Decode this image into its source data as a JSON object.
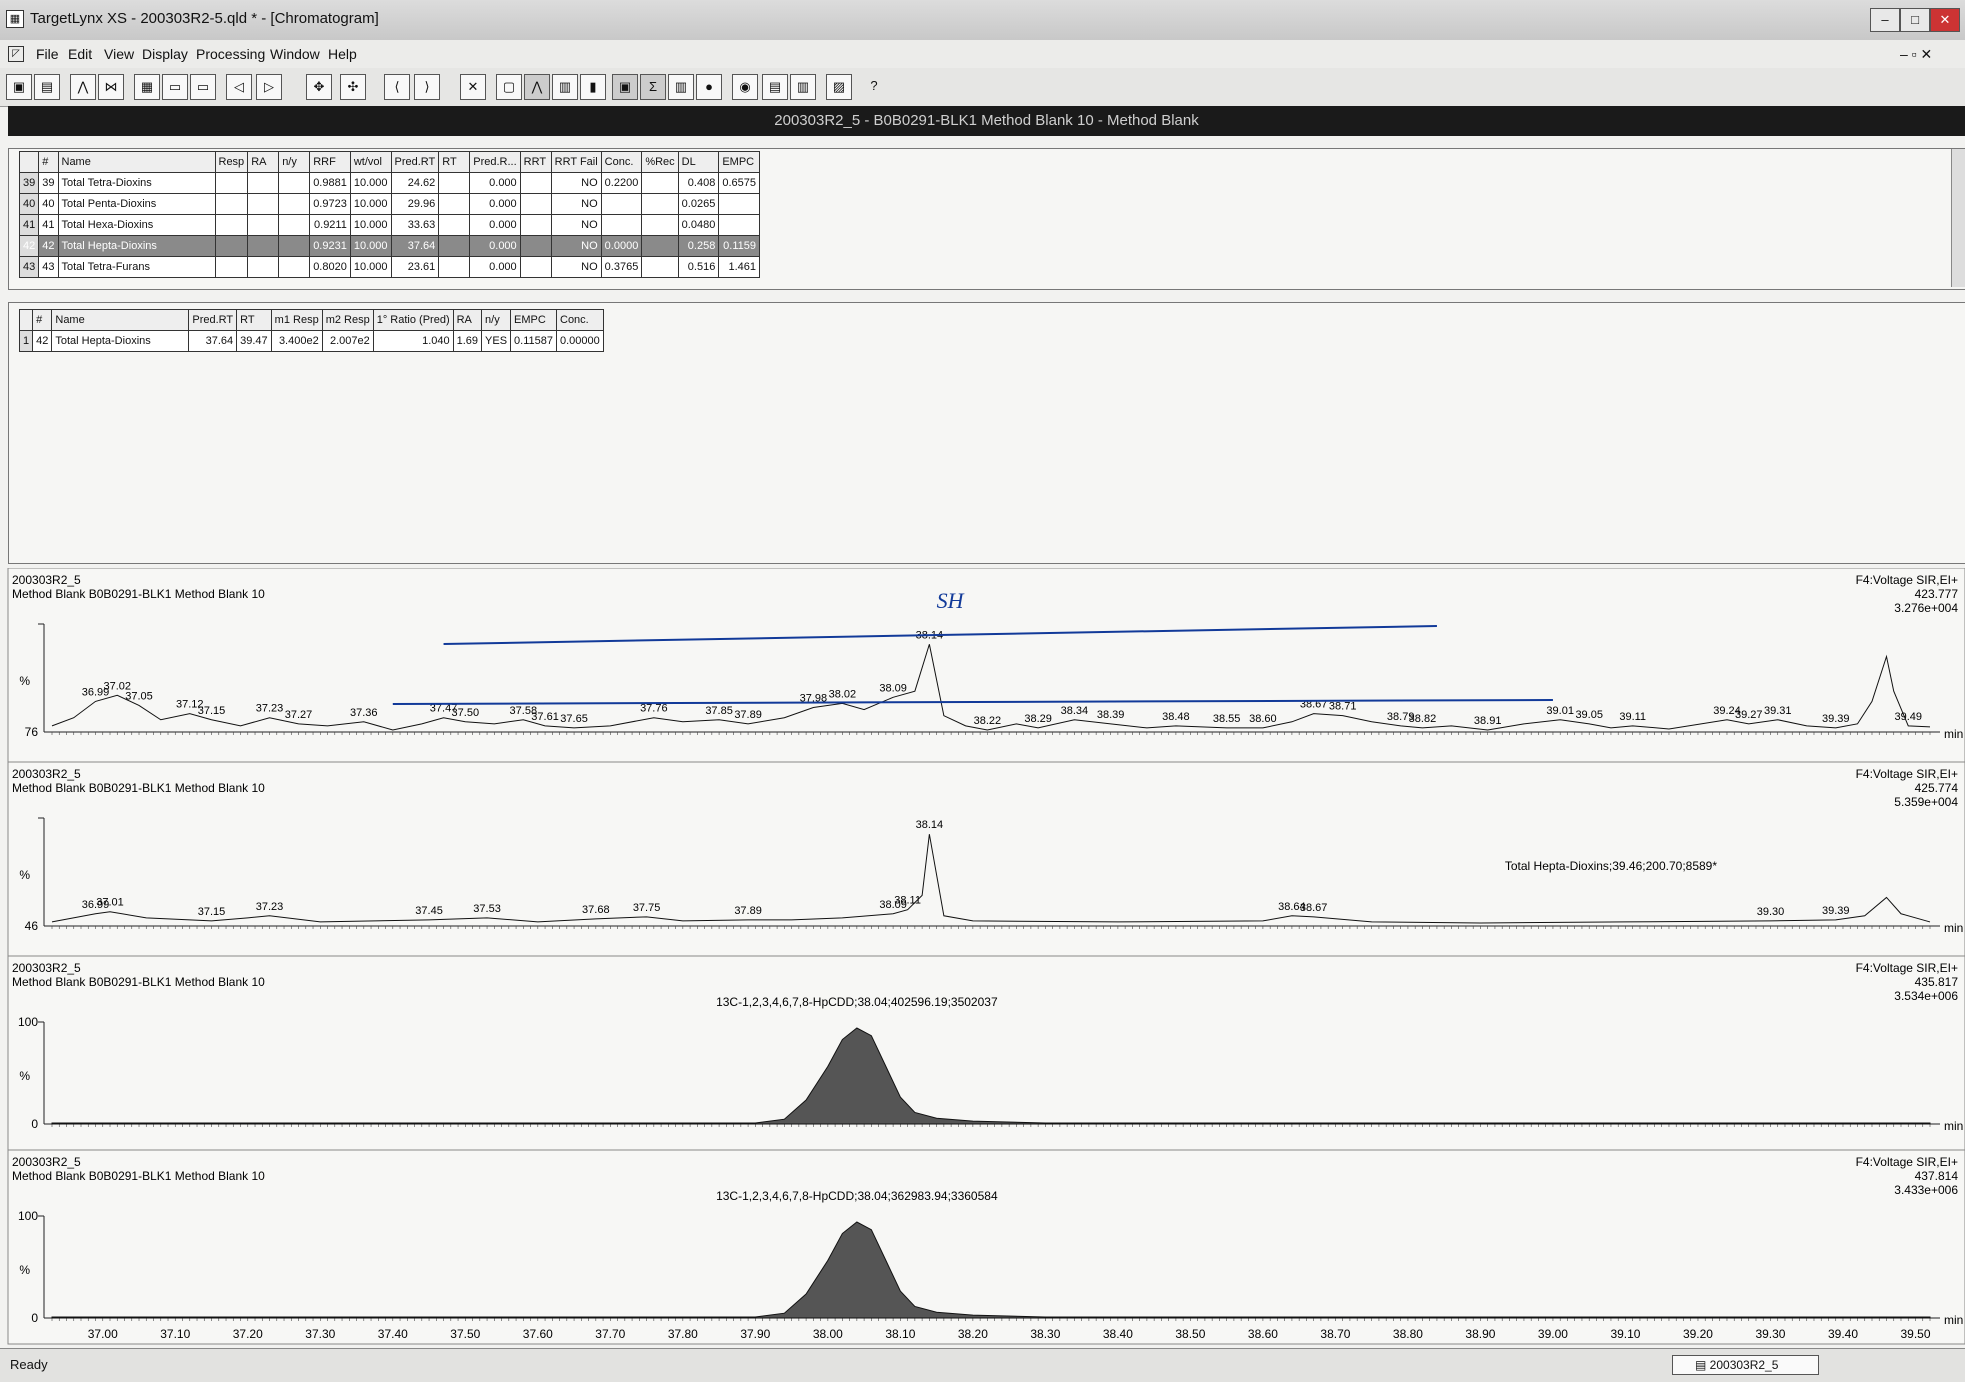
{
  "window": {
    "title": "TargetLynx XS - 200303R2-5.qld * - [Chromatogram]"
  },
  "menu": [
    "File",
    "Edit",
    "View",
    "Display",
    "Processing",
    "Window",
    "Help"
  ],
  "document_title": "200303R2_5 - B0B0291-BLK1 Method Blank 10 - Method Blank",
  "table1": {
    "headers": [
      "#",
      "Name",
      "Resp",
      "RA",
      "n/y",
      "RRF",
      "wt/vol",
      "Pred.RT",
      "RT",
      "Pred.R...",
      "RRT",
      "RRT Fail",
      "Conc.",
      "%Rec",
      "DL",
      "EMPC"
    ],
    "rows": [
      {
        "row": "39",
        "id": "39",
        "name": "Total Tetra-Dioxins",
        "rrf": "0.9881",
        "wtvol": "10.000",
        "predrt": "24.62",
        "predr": "0.000",
        "rrtfail": "NO",
        "conc": "0.2200",
        "dl": "0.408",
        "empc": "0.6575"
      },
      {
        "row": "40",
        "id": "40",
        "name": "Total Penta-Dioxins",
        "rrf": "0.9723",
        "wtvol": "10.000",
        "predrt": "29.96",
        "predr": "0.000",
        "rrtfail": "NO",
        "conc": "",
        "dl": "0.0265",
        "empc": ""
      },
      {
        "row": "41",
        "id": "41",
        "name": "Total Hexa-Dioxins",
        "rrf": "0.9211",
        "wtvol": "10.000",
        "predrt": "33.63",
        "predr": "0.000",
        "rrtfail": "NO",
        "conc": "",
        "dl": "0.0480",
        "empc": ""
      },
      {
        "row": "42",
        "id": "42",
        "name": "Total Hepta-Dioxins",
        "rrf": "0.9231",
        "wtvol": "10.000",
        "predrt": "37.64",
        "predr": "0.000",
        "rrtfail": "NO",
        "conc": "0.0000",
        "dl": "0.258",
        "empc": "0.1159"
      },
      {
        "row": "43",
        "id": "43",
        "name": "Total Tetra-Furans",
        "rrf": "0.8020",
        "wtvol": "10.000",
        "predrt": "23.61",
        "predr": "0.000",
        "rrtfail": "NO",
        "conc": "0.3765",
        "dl": "0.516",
        "empc": "1.461"
      }
    ]
  },
  "table2": {
    "headers": [
      "#",
      "Name",
      "Pred.RT",
      "RT",
      "m1 Resp",
      "m2 Resp",
      "1° Ratio (Pred)",
      "RA",
      "n/y",
      "EMPC",
      "Conc."
    ],
    "rows": [
      {
        "row": "1",
        "id": "42",
        "name": "Total Hepta-Dioxins",
        "predrt": "37.64",
        "rt": "39.47",
        "m1": "3.400e2",
        "m2": "2.007e2",
        "ratio": "1.040",
        "ra": "1.69",
        "ny": "YES",
        "empc": "0.11587",
        "conc": "0.00000"
      }
    ]
  },
  "axis": {
    "unit": "min",
    "ticks": [
      "37.00",
      "37.10",
      "37.20",
      "37.30",
      "37.40",
      "37.50",
      "37.60",
      "37.70",
      "37.80",
      "37.90",
      "38.00",
      "38.10",
      "38.20",
      "38.30",
      "38.40",
      "38.50",
      "38.60",
      "38.70",
      "38.80",
      "38.90",
      "39.00",
      "39.10",
      "39.20",
      "39.30",
      "39.40",
      "39.50"
    ]
  },
  "chart_data": [
    {
      "type": "line",
      "sample": "200303R2_5",
      "description": "Method Blank B0B0291-BLK1 Method Blank 10",
      "function": "F4:Voltage SIR,EI+",
      "mass": "423.777",
      "intensity": "3.276e+004",
      "ylabel": "%",
      "ymin_label": "76",
      "xlim": [
        36.93,
        39.52
      ],
      "annotation": "SH",
      "x": [
        36.93,
        36.96,
        36.99,
        37.02,
        37.05,
        37.08,
        37.12,
        37.15,
        37.19,
        37.23,
        37.27,
        37.31,
        37.36,
        37.4,
        37.44,
        37.47,
        37.5,
        37.54,
        37.58,
        37.61,
        37.65,
        37.7,
        37.76,
        37.8,
        37.85,
        37.89,
        37.94,
        37.98,
        38.02,
        38.05,
        38.09,
        38.12,
        38.14,
        38.16,
        38.19,
        38.22,
        38.26,
        38.29,
        38.34,
        38.39,
        38.44,
        38.48,
        38.55,
        38.6,
        38.64,
        38.67,
        38.71,
        38.75,
        38.79,
        38.82,
        38.86,
        38.91,
        38.96,
        39.01,
        39.05,
        39.08,
        39.11,
        39.16,
        39.24,
        39.27,
        39.31,
        39.35,
        39.39,
        39.42,
        39.44,
        39.46,
        39.47,
        39.49,
        39.52
      ],
      "y": [
        6,
        14,
        30,
        36,
        26,
        12,
        18,
        12,
        6,
        14,
        8,
        6,
        10,
        2,
        8,
        14,
        10,
        8,
        12,
        6,
        4,
        6,
        14,
        10,
        12,
        8,
        14,
        24,
        28,
        22,
        34,
        40,
        86,
        16,
        6,
        2,
        8,
        4,
        12,
        8,
        4,
        6,
        4,
        4,
        10,
        18,
        16,
        10,
        6,
        4,
        6,
        2,
        8,
        12,
        8,
        4,
        6,
        3,
        12,
        8,
        12,
        6,
        4,
        8,
        30,
        74,
        40,
        6,
        5
      ],
      "peak_labels": [
        [
          36.99,
          "36.99"
        ],
        [
          37.02,
          "37.02"
        ],
        [
          37.05,
          "37.05"
        ],
        [
          37.12,
          "37.12"
        ],
        [
          37.15,
          "37.15"
        ],
        [
          37.23,
          "37.23"
        ],
        [
          37.27,
          "37.27"
        ],
        [
          37.36,
          "37.36"
        ],
        [
          37.47,
          "37.47"
        ],
        [
          37.5,
          "37.50"
        ],
        [
          37.58,
          "37.58"
        ],
        [
          37.61,
          "37.61"
        ],
        [
          37.65,
          "37.65"
        ],
        [
          37.76,
          "37.76"
        ],
        [
          37.85,
          "37.85"
        ],
        [
          37.89,
          "37.89"
        ],
        [
          37.98,
          "37.98"
        ],
        [
          38.02,
          "38.02"
        ],
        [
          38.09,
          "38.09"
        ],
        [
          38.14,
          "38.14"
        ],
        [
          38.22,
          "38.22"
        ],
        [
          38.29,
          "38.29"
        ],
        [
          38.34,
          "38.34"
        ],
        [
          38.39,
          "38.39"
        ],
        [
          38.48,
          "38.48"
        ],
        [
          38.55,
          "38.55"
        ],
        [
          38.6,
          "38.60"
        ],
        [
          38.67,
          "38.67"
        ],
        [
          38.71,
          "38.71"
        ],
        [
          38.79,
          "38.79"
        ],
        [
          38.82,
          "38.82"
        ],
        [
          38.91,
          "38.91"
        ],
        [
          39.01,
          "39.01"
        ],
        [
          39.05,
          "39.05"
        ],
        [
          39.11,
          "39.11"
        ],
        [
          39.24,
          "39.24"
        ],
        [
          39.27,
          "39.27"
        ],
        [
          39.31,
          "39.31"
        ],
        [
          39.39,
          "39.39"
        ],
        [
          39.49,
          "39.49"
        ]
      ]
    },
    {
      "type": "line",
      "sample": "200303R2_5",
      "description": "Method Blank B0B0291-BLK1 Method Blank 10",
      "function": "F4:Voltage SIR,EI+",
      "mass": "425.774",
      "intensity": "5.359e+004",
      "ylabel": "%",
      "ymin_label": "46",
      "xlim": [
        36.93,
        39.52
      ],
      "annotation": "Total Hepta-Dioxins;39.46;200.70;8589*",
      "x": [
        36.93,
        36.99,
        37.01,
        37.06,
        37.15,
        37.2,
        37.23,
        37.3,
        37.45,
        37.53,
        37.6,
        37.68,
        37.75,
        37.8,
        37.89,
        37.95,
        38.02,
        38.09,
        38.11,
        38.13,
        38.14,
        38.16,
        38.2,
        38.4,
        38.6,
        38.64,
        38.67,
        38.75,
        38.9,
        39.1,
        39.3,
        39.39,
        39.43,
        39.46,
        39.48,
        39.52
      ],
      "y": [
        4,
        12,
        14,
        8,
        5,
        8,
        10,
        4,
        6,
        8,
        4,
        7,
        9,
        5,
        6,
        6,
        8,
        12,
        16,
        30,
        90,
        10,
        5,
        4,
        5,
        10,
        9,
        4,
        3,
        4,
        5,
        6,
        10,
        28,
        12,
        4
      ],
      "peak_labels": [
        [
          36.99,
          "36.99"
        ],
        [
          37.01,
          "37.01"
        ],
        [
          37.15,
          "37.15"
        ],
        [
          37.23,
          "37.23"
        ],
        [
          37.45,
          "37.45"
        ],
        [
          37.53,
          "37.53"
        ],
        [
          37.68,
          "37.68"
        ],
        [
          37.75,
          "37.75"
        ],
        [
          37.89,
          "37.89"
        ],
        [
          38.09,
          "38.09"
        ],
        [
          38.11,
          "38.11"
        ],
        [
          38.14,
          "38.14"
        ],
        [
          38.64,
          "38.64"
        ],
        [
          38.67,
          "38.67"
        ],
        [
          39.3,
          "39.30"
        ],
        [
          39.39,
          "39.39"
        ]
      ]
    },
    {
      "type": "area",
      "sample": "200303R2_5",
      "description": "Method Blank B0B0291-BLK1 Method Blank 10",
      "function": "F4:Voltage SIR,EI+",
      "mass": "435.817",
      "intensity": "3.534e+006",
      "ylabel": "%",
      "ytick_top": "100",
      "ymin_label": "0",
      "xlim": [
        36.93,
        39.52
      ],
      "annotation": "13C-1,2,3,4,6,7,8-HpCDD;38.04;402596.19;3502037",
      "x": [
        36.93,
        37.9,
        37.94,
        37.97,
        38.0,
        38.02,
        38.04,
        38.06,
        38.08,
        38.1,
        38.12,
        38.15,
        38.2,
        38.3,
        39.52
      ],
      "y": [
        1,
        1,
        5,
        25,
        60,
        88,
        100,
        92,
        60,
        28,
        12,
        6,
        3,
        1,
        1
      ]
    },
    {
      "type": "area",
      "sample": "200303R2_5",
      "description": "Method Blank B0B0291-BLK1 Method Blank 10",
      "function": "F4:Voltage SIR,EI+",
      "mass": "437.814",
      "intensity": "3.433e+006",
      "ylabel": "%",
      "ytick_top": "100",
      "ymin_label": "0",
      "xlim": [
        36.93,
        39.52
      ],
      "annotation": "13C-1,2,3,4,6,7,8-HpCDD;38.04;362983.94;3360584",
      "x": [
        36.93,
        37.9,
        37.94,
        37.97,
        38.0,
        38.02,
        38.04,
        38.06,
        38.08,
        38.1,
        38.12,
        38.15,
        38.2,
        38.3,
        39.52
      ],
      "y": [
        1,
        1,
        5,
        25,
        60,
        88,
        100,
        92,
        60,
        28,
        12,
        6,
        3,
        1,
        1
      ]
    }
  ],
  "status": {
    "text": "Ready",
    "doc": "200303R2_5"
  }
}
